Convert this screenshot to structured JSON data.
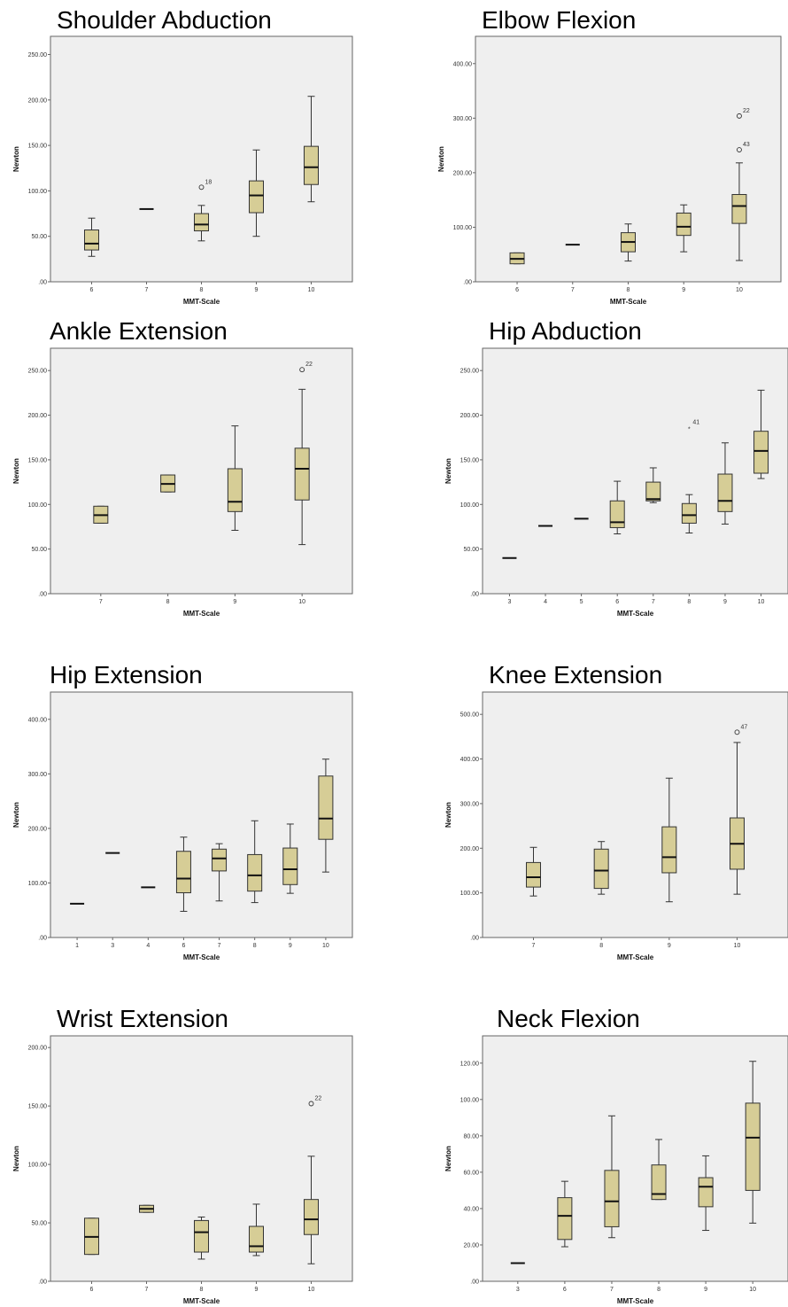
{
  "colors": {
    "box_fill": "#d6cd96",
    "plot_bg": "#efefef",
    "frame": "#666666",
    "line": "#333333"
  },
  "chart_data": [
    {
      "type": "box",
      "title": "Shoulder Abduction",
      "xlabel": "MMT-Scale",
      "ylabel": "Newton",
      "ylim": [
        0,
        270
      ],
      "yticks": [
        ".00",
        "50.00",
        "100.00",
        "150.00",
        "200.00",
        "250.00"
      ],
      "ytick_values": [
        0,
        50,
        100,
        150,
        200,
        250
      ],
      "categories": [
        "6",
        "7",
        "8",
        "9",
        "10"
      ],
      "boxes": [
        {
          "min": 28,
          "q1": 35,
          "median": 42,
          "q3": 57,
          "max": 70
        },
        {
          "min": 80,
          "q1": 80,
          "median": 80,
          "q3": 80,
          "max": 80
        },
        {
          "min": 45,
          "q1": 56,
          "median": 63,
          "q3": 75,
          "max": 84
        },
        {
          "min": 50,
          "q1": 76,
          "median": 95,
          "q3": 111,
          "max": 145
        },
        {
          "min": 88,
          "q1": 107,
          "median": 126,
          "q3": 149,
          "max": 204
        }
      ],
      "outliers": [
        {
          "category": "8",
          "value": 104,
          "label": "18",
          "marker": "circle"
        }
      ]
    },
    {
      "type": "box",
      "title": "Elbow Flexion",
      "xlabel": "MMT-Scale",
      "ylabel": "Newton",
      "ylim": [
        0,
        450
      ],
      "yticks": [
        ".00",
        "100.00",
        "200.00",
        "300.00",
        "400.00"
      ],
      "ytick_values": [
        0,
        100,
        200,
        300,
        400
      ],
      "categories": [
        "6",
        "7",
        "8",
        "9",
        "10"
      ],
      "boxes": [
        {
          "min": 33,
          "q1": 33,
          "median": 42,
          "q3": 53,
          "max": 53
        },
        {
          "min": 68,
          "q1": 68,
          "median": 68,
          "q3": 68,
          "max": 68
        },
        {
          "min": 38,
          "q1": 55,
          "median": 73,
          "q3": 90,
          "max": 106
        },
        {
          "min": 55,
          "q1": 85,
          "median": 101,
          "q3": 126,
          "max": 141
        },
        {
          "min": 39,
          "q1": 107,
          "median": 139,
          "q3": 160,
          "max": 218
        }
      ],
      "outliers": [
        {
          "category": "10",
          "value": 304,
          "label": "22",
          "marker": "circle"
        },
        {
          "category": "10",
          "value": 242,
          "label": "43",
          "marker": "circle"
        }
      ]
    },
    {
      "type": "box",
      "title": "Ankle Extension",
      "xlabel": "MMT-Scale",
      "ylabel": "Newton",
      "ylim": [
        0,
        275
      ],
      "yticks": [
        ".00",
        "50.00",
        "100.00",
        "150.00",
        "200.00",
        "250.00"
      ],
      "ytick_values": [
        0,
        50,
        100,
        150,
        200,
        250
      ],
      "categories": [
        "7",
        "8",
        "9",
        "10"
      ],
      "boxes": [
        {
          "min": 79,
          "q1": 79,
          "median": 88,
          "q3": 98,
          "max": 98
        },
        {
          "min": 114,
          "q1": 114,
          "median": 123,
          "q3": 133,
          "max": 133
        },
        {
          "min": 71,
          "q1": 92,
          "median": 103,
          "q3": 140,
          "max": 188
        },
        {
          "min": 55,
          "q1": 105,
          "median": 140,
          "q3": 163,
          "max": 229
        }
      ],
      "outliers": [
        {
          "category": "10",
          "value": 251,
          "label": "22",
          "marker": "circle"
        }
      ]
    },
    {
      "type": "box",
      "title": "Hip Abduction",
      "xlabel": "MMT-Scale",
      "ylabel": "Newton",
      "ylim": [
        0,
        275
      ],
      "yticks": [
        ".00",
        "50.00",
        "100.00",
        "150.00",
        "200.00",
        "250.00"
      ],
      "ytick_values": [
        0,
        50,
        100,
        150,
        200,
        250
      ],
      "categories": [
        "3",
        "4",
        "5",
        "6",
        "7",
        "8",
        "9",
        "10"
      ],
      "boxes": [
        {
          "min": 40,
          "q1": 40,
          "median": 40,
          "q3": 40,
          "max": 40
        },
        {
          "min": 76,
          "q1": 76,
          "median": 76,
          "q3": 76,
          "max": 76
        },
        {
          "min": 84,
          "q1": 84,
          "median": 84,
          "q3": 84,
          "max": 84
        },
        {
          "min": 67,
          "q1": 74,
          "median": 80,
          "q3": 104,
          "max": 126
        },
        {
          "min": 102,
          "q1": 104,
          "median": 106,
          "q3": 125,
          "max": 141
        },
        {
          "min": 68,
          "q1": 79,
          "median": 88,
          "q3": 101,
          "max": 111
        },
        {
          "min": 78,
          "q1": 92,
          "median": 104,
          "q3": 134,
          "max": 169
        },
        {
          "min": 129,
          "q1": 135,
          "median": 160,
          "q3": 182,
          "max": 228
        }
      ],
      "outliers": [
        {
          "category": "8",
          "value": 186,
          "label": "41",
          "marker": "star"
        }
      ]
    },
    {
      "type": "box",
      "title": "Hip Extension",
      "xlabel": "MMT-Scale",
      "ylabel": "Newton",
      "ylim": [
        0,
        450
      ],
      "yticks": [
        ".00",
        "100.00",
        "200.00",
        "300.00",
        "400.00"
      ],
      "ytick_values": [
        0,
        100,
        200,
        300,
        400
      ],
      "categories": [
        "1",
        "3",
        "4",
        "6",
        "7",
        "8",
        "9",
        "10"
      ],
      "boxes": [
        {
          "min": 62,
          "q1": 62,
          "median": 62,
          "q3": 62,
          "max": 62
        },
        {
          "min": 155,
          "q1": 155,
          "median": 155,
          "q3": 155,
          "max": 155
        },
        {
          "min": 92,
          "q1": 92,
          "median": 92,
          "q3": 92,
          "max": 92
        },
        {
          "min": 48,
          "q1": 82,
          "median": 108,
          "q3": 158,
          "max": 184
        },
        {
          "min": 67,
          "q1": 122,
          "median": 145,
          "q3": 162,
          "max": 172
        },
        {
          "min": 64,
          "q1": 85,
          "median": 114,
          "q3": 152,
          "max": 214
        },
        {
          "min": 81,
          "q1": 97,
          "median": 125,
          "q3": 164,
          "max": 208
        },
        {
          "min": 120,
          "q1": 180,
          "median": 218,
          "q3": 296,
          "max": 327
        }
      ],
      "outliers": []
    },
    {
      "type": "box",
      "title": "Knee Extension",
      "xlabel": "MMT-Scale",
      "ylabel": "Newton",
      "ylim": [
        0,
        550
      ],
      "yticks": [
        ".00",
        "100.00",
        "200.00",
        "300.00",
        "400.00",
        "500.00"
      ],
      "ytick_values": [
        0,
        100,
        200,
        300,
        400,
        500
      ],
      "categories": [
        "7",
        "8",
        "9",
        "10"
      ],
      "boxes": [
        {
          "min": 93,
          "q1": 113,
          "median": 135,
          "q3": 168,
          "max": 202
        },
        {
          "min": 97,
          "q1": 110,
          "median": 150,
          "q3": 198,
          "max": 215
        },
        {
          "min": 80,
          "q1": 145,
          "median": 180,
          "q3": 248,
          "max": 357
        },
        {
          "min": 97,
          "q1": 153,
          "median": 210,
          "q3": 268,
          "max": 437
        }
      ],
      "outliers": [
        {
          "category": "10",
          "value": 460,
          "label": "47",
          "marker": "circle"
        }
      ]
    },
    {
      "type": "box",
      "title": "Wrist Extension",
      "xlabel": "MMT-Scale",
      "ylabel": "Newton",
      "ylim": [
        0,
        210
      ],
      "yticks": [
        ".00",
        "50.00",
        "100.00",
        "150.00",
        "200.00"
      ],
      "ytick_values": [
        0,
        50,
        100,
        150,
        200
      ],
      "categories": [
        "6",
        "7",
        "8",
        "9",
        "10"
      ],
      "boxes": [
        {
          "min": 23,
          "q1": 23,
          "median": 38,
          "q3": 54,
          "max": 54
        },
        {
          "min": 59,
          "q1": 59,
          "median": 62,
          "q3": 65,
          "max": 65
        },
        {
          "min": 19,
          "q1": 25,
          "median": 42,
          "q3": 52,
          "max": 55
        },
        {
          "min": 22,
          "q1": 25,
          "median": 30,
          "q3": 47,
          "max": 66
        },
        {
          "min": 15,
          "q1": 40,
          "median": 53,
          "q3": 70,
          "max": 107
        }
      ],
      "outliers": [
        {
          "category": "10",
          "value": 152,
          "label": "22",
          "marker": "circle"
        }
      ]
    },
    {
      "type": "box",
      "title": "Neck Flexion",
      "xlabel": "MMT-Scale",
      "ylabel": "Newton",
      "ylim": [
        0,
        135
      ],
      "yticks": [
        ".00",
        "20.00",
        "40.00",
        "60.00",
        "80.00",
        "100.00",
        "120.00"
      ],
      "ytick_values": [
        0,
        20,
        40,
        60,
        80,
        100,
        120
      ],
      "categories": [
        "3",
        "6",
        "7",
        "8",
        "9",
        "10"
      ],
      "boxes": [
        {
          "min": 10,
          "q1": 10,
          "median": 10,
          "q3": 10,
          "max": 10
        },
        {
          "min": 19,
          "q1": 23,
          "median": 36,
          "q3": 46,
          "max": 55
        },
        {
          "min": 24,
          "q1": 30,
          "median": 44,
          "q3": 61,
          "max": 91
        },
        {
          "min": 45,
          "q1": 45,
          "median": 48,
          "q3": 64,
          "max": 78
        },
        {
          "min": 28,
          "q1": 41,
          "median": 52,
          "q3": 57,
          "max": 69
        },
        {
          "min": 32,
          "q1": 50,
          "median": 79,
          "q3": 98,
          "max": 121
        }
      ],
      "outliers": []
    }
  ]
}
